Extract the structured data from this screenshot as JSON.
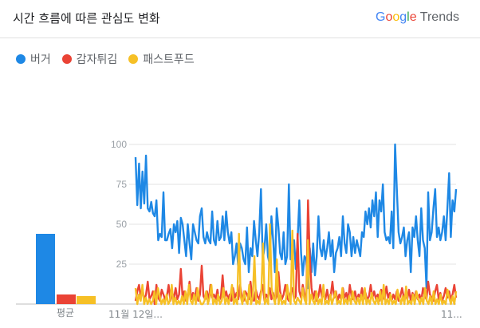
{
  "header": {
    "title": "시간 흐름에 따른 관심도 변화",
    "brand": {
      "google": "Google",
      "trends": "Trends"
    }
  },
  "colors": {
    "google_letters": [
      "#4285F4",
      "#EA4335",
      "#FBBC05",
      "#4285F4",
      "#34A853",
      "#EA4335"
    ]
  },
  "chart_data": {
    "type": "line",
    "title": "시간 흐름에 따른 관심도 변화",
    "ylim": [
      0,
      100
    ],
    "yticks": [
      25,
      50,
      75,
      100
    ],
    "grid": true,
    "legend_position": "top-left",
    "x_start_label": "11월 12일...",
    "x_end_label": "11...",
    "series": [
      {
        "name": "버거",
        "color": "#1e88e5",
        "values": [
          92,
          62,
          88,
          60,
          83,
          63,
          93,
          60,
          58,
          64,
          57,
          55,
          65,
          40,
          44,
          42,
          70,
          40,
          40,
          44,
          47,
          35,
          50,
          45,
          52,
          32,
          54,
          50,
          40,
          30,
          50,
          38,
          28,
          50,
          45,
          40,
          38,
          55,
          60,
          42,
          38,
          45,
          40,
          38,
          58,
          40,
          37,
          52,
          40,
          42,
          55,
          40,
          58,
          45,
          38,
          45,
          25,
          30,
          38,
          22,
          38,
          35,
          28,
          25,
          48,
          20,
          35,
          30,
          52,
          40,
          30,
          45,
          72,
          28,
          35,
          50,
          30,
          25,
          55,
          40,
          20,
          60,
          48,
          32,
          28,
          45,
          25,
          30,
          75,
          28,
          38,
          40,
          22,
          40,
          65,
          32,
          18,
          30,
          28,
          10,
          35,
          20,
          38,
          18,
          30,
          55,
          35,
          30,
          40,
          28,
          35,
          45,
          30,
          40,
          20,
          32,
          35,
          42,
          30,
          55,
          38,
          32,
          50,
          45,
          30,
          42,
          32,
          40,
          35,
          30,
          45,
          42,
          58,
          50,
          60,
          48,
          65,
          55,
          70,
          42,
          65,
          58,
          75,
          45,
          40,
          42,
          38,
          58,
          35,
          100,
          72,
          45,
          38,
          42,
          48,
          30,
          40,
          45,
          20,
          48,
          42,
          55,
          40,
          30,
          60,
          40,
          35,
          10,
          70,
          40,
          45,
          60,
          72,
          42,
          48,
          40,
          45,
          55,
          40,
          60,
          82,
          42,
          65,
          58,
          72
        ]
      },
      {
        "name": "감자튀김",
        "color": "#ea4335",
        "values": [
          2,
          8,
          12,
          4,
          10,
          2,
          6,
          14,
          3,
          5,
          8,
          0,
          12,
          4,
          2,
          9,
          6,
          3,
          5,
          12,
          2,
          7,
          4,
          10,
          3,
          6,
          22,
          4,
          8,
          2,
          5,
          14,
          3,
          7,
          4,
          10,
          2,
          6,
          24,
          5,
          3,
          8,
          2,
          12,
          4,
          6,
          3,
          9,
          2,
          5,
          18,
          4,
          8,
          3,
          6,
          2,
          10,
          4,
          7,
          3,
          12,
          5,
          2,
          8,
          6,
          3,
          14,
          4,
          2,
          9,
          5,
          3,
          8,
          12,
          2,
          6,
          4,
          10,
          3,
          7,
          2,
          5,
          20,
          8,
          3,
          6,
          12,
          4,
          2,
          7,
          10,
          3,
          5,
          44,
          8,
          4,
          12,
          6,
          2,
          65,
          30,
          10,
          3,
          8,
          2,
          5,
          12,
          4,
          6,
          3,
          9,
          2,
          5,
          14,
          4,
          8,
          2,
          6,
          3,
          10,
          4,
          7,
          2,
          12,
          5,
          3,
          8,
          2,
          6,
          4,
          10,
          3,
          7,
          2,
          5,
          12,
          4,
          8,
          3,
          6,
          2,
          9,
          5,
          3,
          11,
          4,
          7,
          2,
          6,
          3,
          8,
          2,
          5,
          10,
          4,
          6,
          3,
          9,
          2,
          7,
          4,
          8,
          3,
          6,
          2,
          10,
          5,
          3,
          14,
          6,
          4,
          2,
          8,
          12,
          3,
          7,
          2,
          5,
          10,
          4,
          8,
          3,
          6,
          12,
          4
        ]
      },
      {
        "name": "패스트푸드",
        "color": "#f6c026",
        "values": [
          10,
          0,
          6,
          2,
          12,
          0,
          4,
          0,
          3,
          0,
          2,
          8,
          0,
          10,
          5,
          0,
          3,
          0,
          6,
          0,
          2,
          12,
          0,
          4,
          0,
          2,
          0,
          5,
          0,
          8,
          0,
          12,
          2,
          0,
          6,
          0,
          10,
          3,
          0,
          0,
          2,
          8,
          0,
          4,
          12,
          0,
          3,
          0,
          6,
          0,
          2,
          10,
          0,
          4,
          0,
          5,
          12,
          0,
          3,
          0,
          44,
          5,
          0,
          8,
          2,
          0,
          12,
          0,
          4,
          30,
          0,
          2,
          0,
          8,
          38,
          0,
          3,
          0,
          50,
          10,
          4,
          0,
          28,
          0,
          6,
          0,
          2,
          0,
          12,
          4,
          0,
          46,
          2,
          0,
          4,
          2,
          0,
          10,
          3,
          0,
          40,
          0,
          6,
          2,
          0,
          8,
          0,
          3,
          0,
          12,
          0,
          2,
          0,
          6,
          0,
          4,
          8,
          0,
          2,
          0,
          10,
          0,
          3,
          0,
          5,
          0,
          8,
          2,
          0,
          4,
          0,
          6,
          0,
          10,
          0,
          3,
          0,
          7,
          2,
          0,
          4,
          0,
          8,
          0,
          12,
          0,
          3,
          0,
          6,
          0,
          2,
          0,
          9,
          4,
          0,
          5,
          0,
          11,
          0,
          2,
          0,
          6,
          0,
          8,
          3,
          0,
          4,
          0,
          10,
          2,
          0,
          5,
          0,
          8,
          0,
          3,
          0,
          6,
          0,
          2,
          0,
          9,
          4,
          0,
          5,
          0,
          8
        ]
      }
    ],
    "averages": {
      "label": "평균",
      "values": [
        {
          "name": "버거",
          "value": 44
        },
        {
          "name": "감자튀김",
          "value": 6
        },
        {
          "name": "패스트푸드",
          "value": 5
        }
      ]
    }
  }
}
